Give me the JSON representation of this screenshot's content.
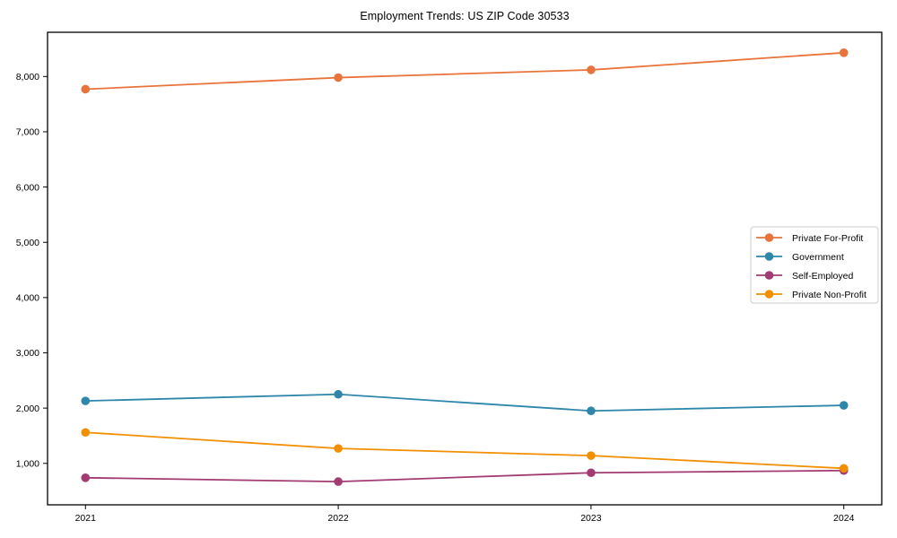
{
  "chart_data": {
    "type": "line",
    "title": "Employment Trends: US ZIP Code 30533",
    "xlabel": "",
    "ylabel": "",
    "x": [
      2021,
      2022,
      2023,
      2024
    ],
    "x_tick_labels": [
      "2021",
      "2022",
      "2023",
      "2024"
    ],
    "series": [
      {
        "name": "Private For-Profit",
        "color": "#E8743B",
        "values": [
          7770,
          7980,
          8120,
          8430
        ]
      },
      {
        "name": "Government",
        "color": "#2E86AB",
        "values": [
          2130,
          2250,
          1950,
          2050
        ]
      },
      {
        "name": "Self-Employed",
        "color": "#A23B72",
        "values": [
          740,
          670,
          830,
          870
        ]
      },
      {
        "name": "Private Non-Profit",
        "color": "#F18F01",
        "values": [
          1560,
          1270,
          1140,
          910
        ]
      }
    ],
    "xlim": [
      2020.85,
      2024.15
    ],
    "ylim": [
      250,
      8800
    ],
    "yticks": [
      1000,
      2000,
      3000,
      4000,
      5000,
      6000,
      7000,
      8000
    ],
    "ytick_labels": [
      "1,000",
      "2,000",
      "3,000",
      "4,000",
      "5,000",
      "6,000",
      "7,000",
      "8,000"
    ],
    "grid": false,
    "legend": {
      "position": "right-middle",
      "entries": [
        "Private For-Profit",
        "Government",
        "Self-Employed",
        "Private Non-Profit"
      ]
    },
    "frame_color": "#000000",
    "legend_border_color": "#cccccc"
  }
}
